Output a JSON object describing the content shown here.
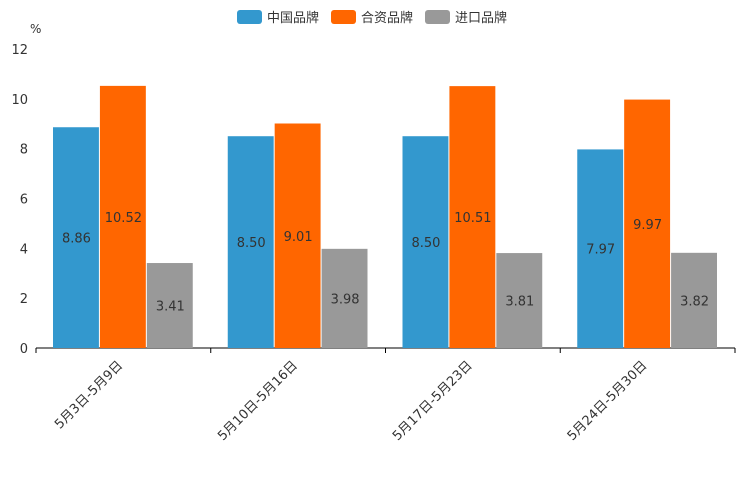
{
  "chart_data": {
    "type": "bar",
    "title": "",
    "ylabel": "%",
    "xlabel": "",
    "ylim": [
      0,
      12
    ],
    "yticks": [
      0,
      2,
      4,
      6,
      8,
      10,
      12
    ],
    "categories": [
      "5月3日-5月9日",
      "5月10日-5月16日",
      "5月17日-5月23日",
      "5月24日-5月30日"
    ],
    "series": [
      {
        "name": "中国品牌",
        "color": "#3398CE",
        "values": [
          8.86,
          8.5,
          8.5,
          7.97
        ],
        "labels": [
          "8.86",
          "8.50",
          "8.50",
          "7.97"
        ]
      },
      {
        "name": "合资品牌",
        "color": "#FF6600",
        "values": [
          10.52,
          9.01,
          10.51,
          9.97
        ],
        "labels": [
          "10.52",
          "9.01",
          "10.51",
          "9.97"
        ]
      },
      {
        "name": "进口品牌",
        "color": "#999999",
        "values": [
          3.41,
          3.98,
          3.81,
          3.82
        ],
        "labels": [
          "3.41",
          "3.98",
          "3.81",
          "3.82"
        ]
      }
    ],
    "legend_position": "top-center",
    "grid": false
  }
}
